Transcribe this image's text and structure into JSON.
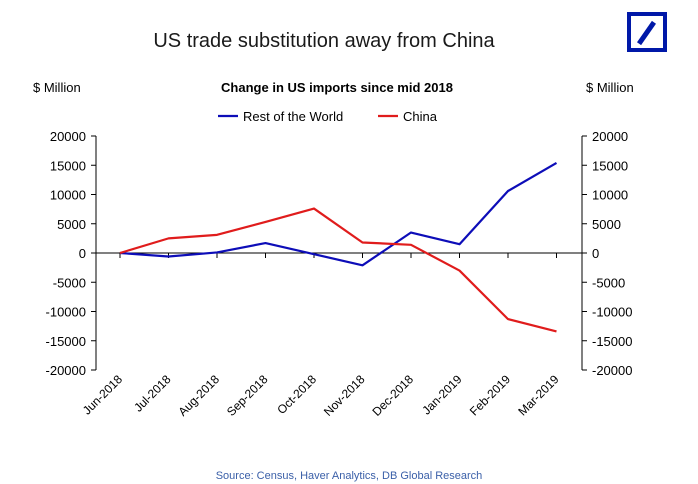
{
  "chart_data": {
    "type": "line",
    "title": "US trade substitution away from China",
    "subtitle": "Change in US imports since mid 2018",
    "ylabel_left": "$ Million",
    "ylabel_right": "$ Million",
    "source": "Source: Census, Haver Analytics, DB Global Research",
    "categories": [
      "Jun-2018",
      "Jul-2018",
      "Aug-2018",
      "Sep-2018",
      "Oct-2018",
      "Nov-2018",
      "Dec-2018",
      "Jan-2019",
      "Feb-2019",
      "Mar-2019"
    ],
    "yticks": [
      20000,
      15000,
      10000,
      5000,
      0,
      -5000,
      -10000,
      -15000,
      -20000
    ],
    "ylim": [
      -20000,
      20000
    ],
    "legend_position": "top-center",
    "grid": false,
    "series": [
      {
        "name": "Rest of the World",
        "color": "#0d0db8",
        "values": [
          0,
          -600,
          100,
          1700,
          -200,
          -2100,
          3500,
          1500,
          10600,
          15400
        ]
      },
      {
        "name": "China",
        "color": "#e01c1c",
        "values": [
          0,
          2500,
          3100,
          5300,
          7600,
          1800,
          1400,
          -3000,
          -11300,
          -13400
        ]
      }
    ]
  }
}
